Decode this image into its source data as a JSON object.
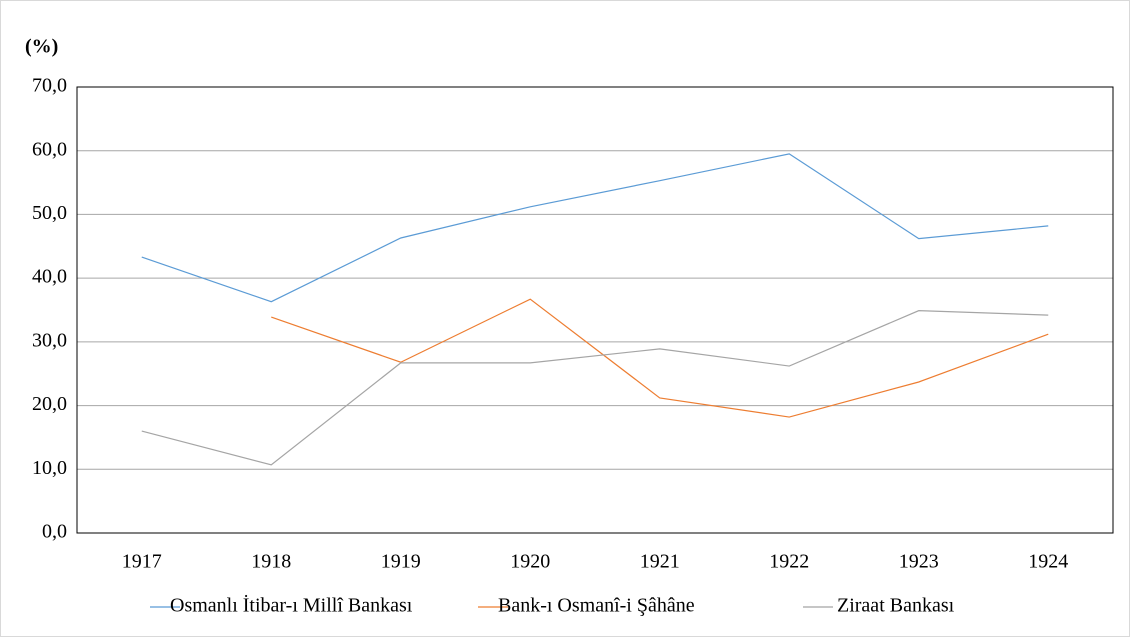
{
  "chart_data": {
    "type": "line",
    "title": "(%)",
    "categories": [
      "1917",
      "1918",
      "1919",
      "1920",
      "1921",
      "1922",
      "1923",
      "1924"
    ],
    "series": [
      {
        "name": "Osmanlı İtibar-ı Millî Bankası",
        "color": "#5b9bd5",
        "values": [
          43.3,
          36.3,
          46.3,
          51.2,
          55.3,
          59.5,
          46.2,
          48.2
        ]
      },
      {
        "name": "Bank-ı Osmanî-i Şâhâne",
        "color": "#ed7d31",
        "values": [
          null,
          33.9,
          26.8,
          36.7,
          21.2,
          18.2,
          23.7,
          31.2
        ]
      },
      {
        "name": "Ziraat Bankası",
        "color": "#a5a5a5",
        "values": [
          16.0,
          10.7,
          26.7,
          26.7,
          28.9,
          26.2,
          34.9,
          34.2
        ]
      }
    ],
    "ylim": [
      0,
      70
    ],
    "yticks": [
      {
        "value": 0,
        "label": "0,0"
      },
      {
        "value": 10,
        "label": "10,0"
      },
      {
        "value": 20,
        "label": "20,0"
      },
      {
        "value": 30,
        "label": "30,0"
      },
      {
        "value": 40,
        "label": "40,0"
      },
      {
        "value": 50,
        "label": "50,0"
      },
      {
        "value": 60,
        "label": "60,0"
      },
      {
        "value": 70,
        "label": "70,0"
      }
    ],
    "grid": true,
    "legend": "bottom"
  }
}
